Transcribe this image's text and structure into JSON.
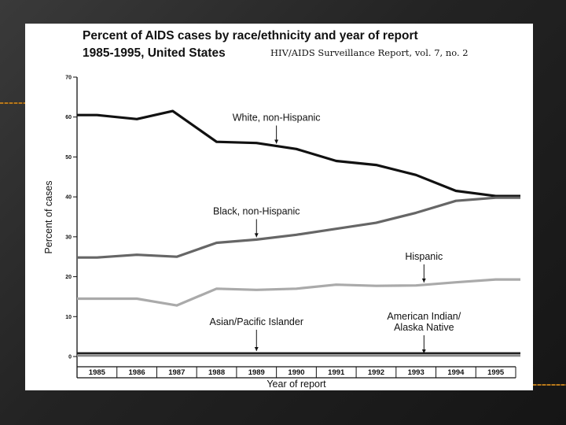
{
  "chart_data": {
    "type": "line",
    "title": "Percent of AIDS cases by race/ethnicity and year of report",
    "subtitle": "1985-1995, United States",
    "source": "HIV/AIDS Surveillance Report, vol. 7, no. 2",
    "xlabel": "Year of report",
    "ylabel": "Percent of cases",
    "categories": [
      "1985",
      "1986",
      "1987",
      "1988",
      "1989",
      "1990",
      "1991",
      "1992",
      "1993",
      "1994",
      "1995"
    ],
    "y_ticks": [
      0,
      10,
      20,
      30,
      40,
      50,
      60,
      70
    ],
    "ylim": [
      0,
      70
    ],
    "grid": false,
    "series": [
      {
        "name": "White, non-Hispanic",
        "color": "#111111",
        "x": [
          1985,
          1986,
          1986.9,
          1988,
          1989,
          1990,
          1991,
          1992,
          1993,
          1994,
          1995
        ],
        "values": [
          60.5,
          59.5,
          61.5,
          53.8,
          53.5,
          52,
          49,
          48,
          45.5,
          41.5,
          40.2
        ]
      },
      {
        "name": "Black, non-Hispanic",
        "color": "#666666",
        "x": [
          1985,
          1986,
          1987,
          1988,
          1989,
          1990,
          1991,
          1992,
          1993,
          1994,
          1995
        ],
        "values": [
          24.8,
          25.5,
          25,
          28.5,
          29.3,
          30.5,
          32,
          33.5,
          36,
          39,
          39.8
        ]
      },
      {
        "name": "Hispanic",
        "color": "#aaaaaa",
        "x": [
          1985,
          1986,
          1987,
          1988,
          1989,
          1990,
          1991,
          1992,
          1993,
          1994,
          1995
        ],
        "values": [
          14.5,
          14.5,
          12.8,
          17,
          16.7,
          17,
          18,
          17.7,
          17.8,
          18.6,
          19.3
        ]
      },
      {
        "name": "Asian/Pacific Islander",
        "color": "#222222",
        "x": [
          1985,
          1986,
          1987,
          1988,
          1989,
          1990,
          1991,
          1992,
          1993,
          1994,
          1995
        ],
        "values": [
          0.8,
          0.8,
          0.8,
          0.8,
          0.8,
          0.8,
          0.8,
          0.8,
          0.8,
          0.8,
          0.8
        ]
      },
      {
        "name": "American Indian/ Alaska Native",
        "color": "#8a8a8a",
        "x": [
          1985,
          1986,
          1987,
          1988,
          1989,
          1990,
          1991,
          1992,
          1993,
          1994,
          1995
        ],
        "values": [
          0.2,
          0.2,
          0.2,
          0.2,
          0.2,
          0.2,
          0.2,
          0.2,
          0.2,
          0.2,
          0.2
        ]
      }
    ],
    "annotations": [
      {
        "text": "White, non-Hispanic",
        "series": 0,
        "x": 1989.5
      },
      {
        "text": "Black, non-Hispanic",
        "series": 1,
        "x": 1989
      },
      {
        "text": "Hispanic",
        "series": 2,
        "x": 1993.2
      },
      {
        "text": "Asian/Pacific Islander",
        "series": 3,
        "x": 1989
      },
      {
        "lines": [
          "American Indian/",
          "Alaska Native"
        ],
        "series": 4,
        "x": 1993.2
      }
    ]
  }
}
